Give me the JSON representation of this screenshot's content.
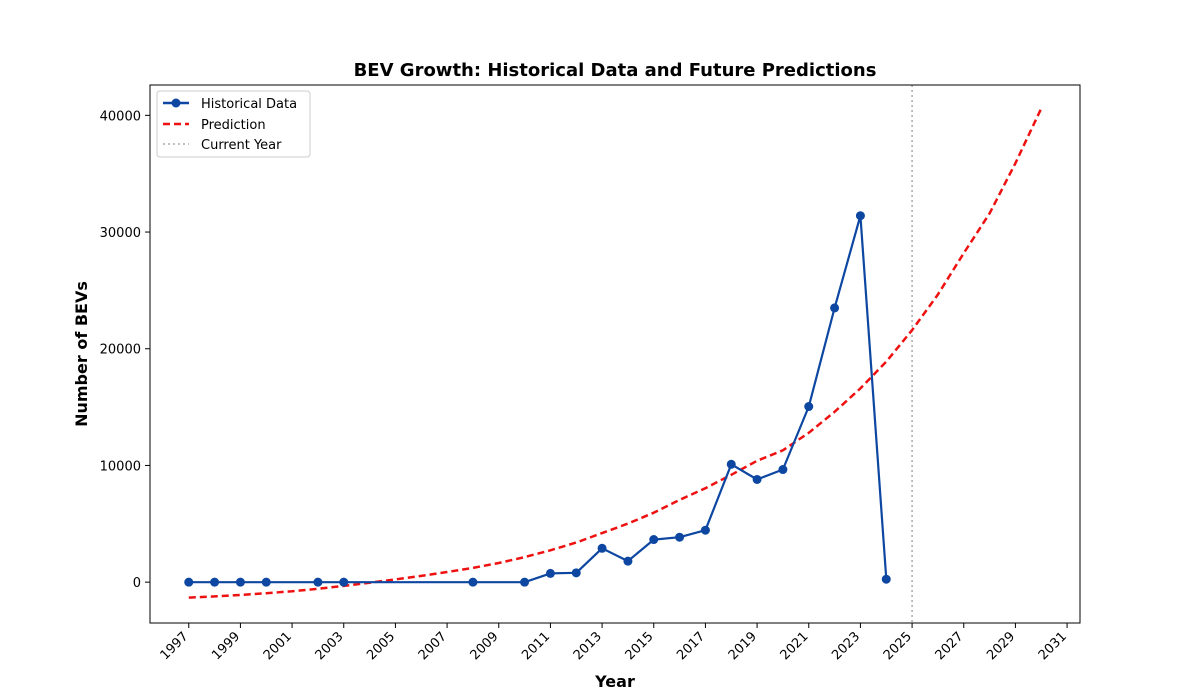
{
  "chart_data": {
    "type": "line",
    "title": "BEV Growth: Historical Data and Future Predictions",
    "xlabel": "Year",
    "ylabel": "Number of BEVs",
    "xlim": [
      1995.5,
      2031.5
    ],
    "ylim": [
      -3500,
      42600
    ],
    "x_ticks": [
      1997,
      1999,
      2001,
      2003,
      2005,
      2007,
      2009,
      2011,
      2013,
      2015,
      2017,
      2019,
      2021,
      2023,
      2025,
      2027,
      2029,
      2031
    ],
    "y_ticks": [
      0,
      10000,
      20000,
      30000,
      40000
    ],
    "grid": false,
    "legend_position": "top-left",
    "series": [
      {
        "name": "Historical Data",
        "style": "solid-with-markers",
        "color": "#0d47a1",
        "x": [
          1997,
          1998,
          1999,
          2000,
          2002,
          2003,
          2008,
          2010,
          2011,
          2012,
          2013,
          2014,
          2015,
          2016,
          2017,
          2018,
          2019,
          2020,
          2021,
          2022,
          2023,
          2024
        ],
        "y": [
          0,
          0,
          0,
          0,
          0,
          0,
          0,
          0,
          750,
          800,
          2900,
          1800,
          3650,
          3850,
          4450,
          10100,
          8800,
          9650,
          15050,
          23500,
          31400,
          250
        ]
      },
      {
        "name": "Prediction",
        "style": "dashed",
        "color": "#ee1111",
        "x": [
          1997,
          1998,
          1999,
          2000,
          2001,
          2002,
          2003,
          2004,
          2005,
          2006,
          2007,
          2008,
          2009,
          2010,
          2011,
          2012,
          2013,
          2014,
          2015,
          2016,
          2017,
          2018,
          2019,
          2020,
          2021,
          2022,
          2023,
          2024,
          2025,
          2026,
          2027,
          2028,
          2029,
          2030
        ],
        "y": [
          -1320,
          -1220,
          -1100,
          -950,
          -780,
          -570,
          -320,
          -50,
          240,
          540,
          870,
          1220,
          1640,
          2150,
          2730,
          3400,
          4200,
          5020,
          5950,
          7050,
          8050,
          9200,
          10400,
          11300,
          12800,
          14600,
          16600,
          18900,
          21600,
          24650,
          28200,
          31600,
          35900,
          40600
        ]
      },
      {
        "name": "Current Year",
        "style": "dotted-vertical",
        "color": "#aaaaaa",
        "x": [
          2025
        ]
      }
    ]
  }
}
